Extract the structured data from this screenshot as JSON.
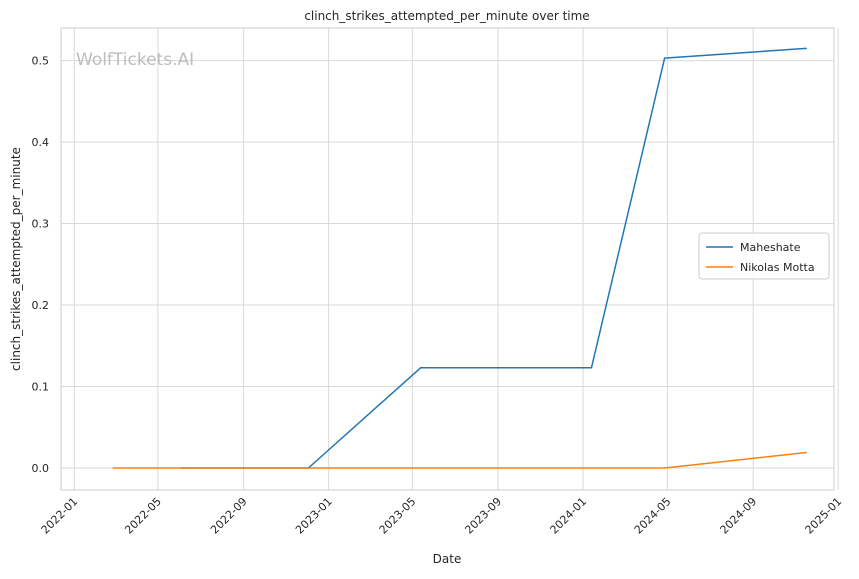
{
  "watermark": "WolfTickets.AI",
  "chart_data": {
    "type": "line",
    "title": "clinch_strikes_attempted_per_minute over time",
    "xlabel": "Date",
    "ylabel": "clinch_strikes_attempted_per_minute",
    "xlim": [
      "2021-12-13",
      "2024-12-26"
    ],
    "ylim": [
      -0.027,
      0.54
    ],
    "x_ticks": [
      "2022-01",
      "2022-05",
      "2022-09",
      "2023-01",
      "2023-05",
      "2023-09",
      "2024-01",
      "2024-05",
      "2024-09",
      "2025-01"
    ],
    "y_ticks": [
      0.0,
      0.1,
      0.2,
      0.3,
      0.4,
      0.5
    ],
    "y_tick_labels": [
      "0.0",
      "0.1",
      "0.2",
      "0.3",
      "0.4",
      "0.5"
    ],
    "grid": true,
    "legend_position": "center-right",
    "series": [
      {
        "name": "Maheshate",
        "color": "#1f77b4",
        "points": [
          {
            "x": "2022-06-04",
            "y": 0.0
          },
          {
            "x": "2022-12-03",
            "y": 0.0
          },
          {
            "x": "2023-05-13",
            "y": 0.123
          },
          {
            "x": "2024-01-13",
            "y": 0.123
          },
          {
            "x": "2024-04-27",
            "y": 0.503
          },
          {
            "x": "2024-11-16",
            "y": 0.515
          }
        ]
      },
      {
        "name": "Nikolas Motta",
        "color": "#ff7f0e",
        "points": [
          {
            "x": "2022-02-26",
            "y": 0.0
          },
          {
            "x": "2024-04-27",
            "y": 0.0
          },
          {
            "x": "2024-11-16",
            "y": 0.019
          }
        ]
      }
    ]
  }
}
